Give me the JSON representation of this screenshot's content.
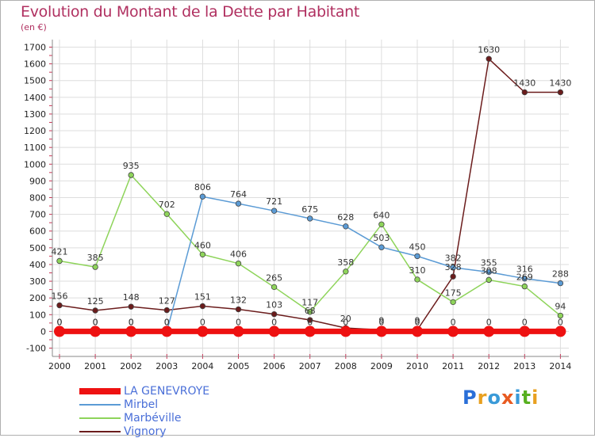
{
  "title": "Evolution du Montant de la Dette par Habitant",
  "subtitle": "(en €)",
  "logo": {
    "text": "Proxiti",
    "colors": [
      "#2a6fd8",
      "#e8a020",
      "#3a9ad8",
      "#e85a20",
      "#3a9ad8",
      "#58b020",
      "#e8a020"
    ]
  },
  "chart_data": {
    "type": "line",
    "x": [
      "2000",
      "2001",
      "2002",
      "2003",
      "2004",
      "2005",
      "2006",
      "2007",
      "2008",
      "2009",
      "2010",
      "2011",
      "2012",
      "2013",
      "2014"
    ],
    "ylim": [
      -100,
      1700
    ],
    "yticks": [
      -100,
      0,
      100,
      200,
      300,
      400,
      500,
      600,
      700,
      800,
      900,
      1000,
      1100,
      1200,
      1300,
      1400,
      1500,
      1600,
      1700
    ],
    "grid": true,
    "legend_position": "bottom-left",
    "series": [
      {
        "name": "LA GENEVROYE",
        "color": "#ee1111",
        "values": [
          0,
          0,
          0,
          0,
          0,
          0,
          0,
          0,
          0,
          0,
          0,
          0,
          0,
          0,
          0
        ],
        "labels": [
          "0",
          "0",
          "0",
          "0",
          "0",
          "0",
          "0",
          "0",
          "0",
          "0",
          "0",
          "0",
          "0",
          "0",
          "0"
        ]
      },
      {
        "name": "Mirbel",
        "color": "#5b9bd5",
        "values": [
          0,
          0,
          0,
          0,
          806,
          764,
          721,
          675,
          628,
          503,
          450,
          382,
          355,
          316,
          288
        ],
        "labels": [
          "0",
          "0",
          "0",
          "0",
          "806",
          "764",
          "721",
          "675",
          "628",
          "503",
          "450",
          "382",
          "355",
          "316",
          "288"
        ]
      },
      {
        "name": "Marbéville",
        "color": "#8ed45a",
        "values": [
          421,
          385,
          935,
          702,
          460,
          406,
          265,
          117,
          358,
          640,
          310,
          175,
          308,
          269,
          94
        ],
        "labels": [
          "421",
          "385",
          "935",
          "702",
          "460",
          "406",
          "265",
          "117",
          "358",
          "640",
          "310",
          "175",
          "308",
          "269",
          "94"
        ]
      },
      {
        "name": "Vignory",
        "color": "#6b1c1c",
        "values": [
          156,
          125,
          148,
          127,
          151,
          132,
          103,
          68,
          20,
          9,
          9,
          328,
          1630,
          1430,
          1430
        ],
        "labels": [
          "156",
          "125",
          "148",
          "127",
          "151",
          "132",
          "103",
          "68",
          "20",
          "9",
          "9",
          "328",
          "1630",
          "1430",
          "1430"
        ]
      }
    ]
  }
}
